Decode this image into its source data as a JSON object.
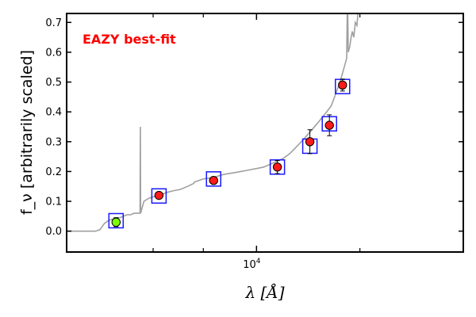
{
  "chart_data": {
    "type": "scatter",
    "title": "",
    "annotation": "EAZY best-fit",
    "annotation_color": "#ff0000",
    "xlabel": "λ [Å]",
    "ylabel": "f_ν [arbitrarily scaled]",
    "xscale": "log",
    "xlim": [
      2800,
      40000
    ],
    "ylim": [
      -0.07,
      0.73
    ],
    "x_tick_labels": [
      {
        "value": 10000,
        "label": "10^4"
      }
    ],
    "x_minor_ticks": [
      5000,
      7000,
      20000
    ],
    "y_ticks": [
      0.0,
      0.1,
      0.2,
      0.3,
      0.4,
      0.5,
      0.6,
      0.7
    ],
    "grid": false,
    "colors": {
      "model": "#a0a0a0",
      "point_fill": "#ff1a1a",
      "highlight_fill": "#7cfc00",
      "box": "#1a1aff",
      "error": "#000000",
      "frame": "#000000"
    },
    "series": [
      {
        "type": "line",
        "values": [
          [
            2800,
            0.0
          ],
          [
            3000,
            0.0
          ],
          [
            3200,
            0.0
          ],
          [
            3400,
            0.0
          ],
          [
            3500,
            0.005
          ],
          [
            3600,
            0.025
          ],
          [
            3700,
            0.035
          ],
          [
            3800,
            0.04
          ],
          [
            3900,
            0.045
          ],
          [
            4000,
            0.045
          ],
          [
            4100,
            0.05
          ],
          [
            4200,
            0.055
          ],
          [
            4300,
            0.055
          ],
          [
            4400,
            0.06
          ],
          [
            4500,
            0.06
          ],
          [
            4580,
            0.06
          ],
          [
            4590,
            0.35
          ],
          [
            4600,
            0.06
          ],
          [
            4700,
            0.1
          ],
          [
            4850,
            0.11
          ],
          [
            5000,
            0.115
          ],
          [
            5200,
            0.12
          ],
          [
            5500,
            0.13
          ],
          [
            5700,
            0.135
          ],
          [
            6000,
            0.14
          ],
          [
            6300,
            0.15
          ],
          [
            6562,
            0.16
          ],
          [
            6600,
            0.165
          ],
          [
            7000,
            0.175
          ],
          [
            7500,
            0.18
          ],
          [
            8000,
            0.19
          ],
          [
            8500,
            0.195
          ],
          [
            9000,
            0.2
          ],
          [
            9500,
            0.205
          ],
          [
            10000,
            0.21
          ],
          [
            10500,
            0.215
          ],
          [
            11000,
            0.225
          ],
          [
            11500,
            0.235
          ],
          [
            12000,
            0.245
          ],
          [
            12500,
            0.26
          ],
          [
            13000,
            0.28
          ],
          [
            13500,
            0.3
          ],
          [
            14000,
            0.32
          ],
          [
            14500,
            0.34
          ],
          [
            15000,
            0.36
          ],
          [
            15500,
            0.38
          ],
          [
            16000,
            0.4
          ],
          [
            16500,
            0.42
          ],
          [
            17000,
            0.46
          ],
          [
            17500,
            0.5
          ],
          [
            18000,
            0.55
          ],
          [
            18300,
            0.58
          ],
          [
            18400,
            0.8
          ],
          [
            18500,
            0.6
          ],
          [
            18700,
            0.62
          ],
          [
            18800,
            0.64
          ],
          [
            19000,
            0.67
          ],
          [
            19200,
            0.65
          ],
          [
            19400,
            0.7
          ],
          [
            19600,
            0.69
          ],
          [
            19800,
            0.75
          ],
          [
            20000,
            0.8
          ]
        ]
      },
      {
        "type": "scatter",
        "points": [
          {
            "x": 3900,
            "y": 0.03,
            "yerr": 0.015,
            "highlight": true
          },
          {
            "x": 5200,
            "y": 0.12,
            "yerr": 0.01,
            "highlight": false
          },
          {
            "x": 7500,
            "y": 0.17,
            "yerr": 0.012,
            "highlight": false
          },
          {
            "x": 11500,
            "y": 0.215,
            "yerr": 0.022,
            "highlight": false
          },
          {
            "x": 14300,
            "y": 0.3,
            "yerr": 0.04,
            "highlight": false
          },
          {
            "x": 16300,
            "y": 0.355,
            "yerr": 0.035,
            "highlight": false
          },
          {
            "x": 17800,
            "y": 0.49,
            "yerr": 0.02,
            "highlight": false
          }
        ]
      },
      {
        "type": "model_boxes",
        "points": [
          {
            "x": 3900,
            "y": 0.035
          },
          {
            "x": 5200,
            "y": 0.118
          },
          {
            "x": 7500,
            "y": 0.175
          },
          {
            "x": 11500,
            "y": 0.215
          },
          {
            "x": 14300,
            "y": 0.285
          },
          {
            "x": 16300,
            "y": 0.36
          },
          {
            "x": 17800,
            "y": 0.485
          }
        ]
      }
    ]
  }
}
